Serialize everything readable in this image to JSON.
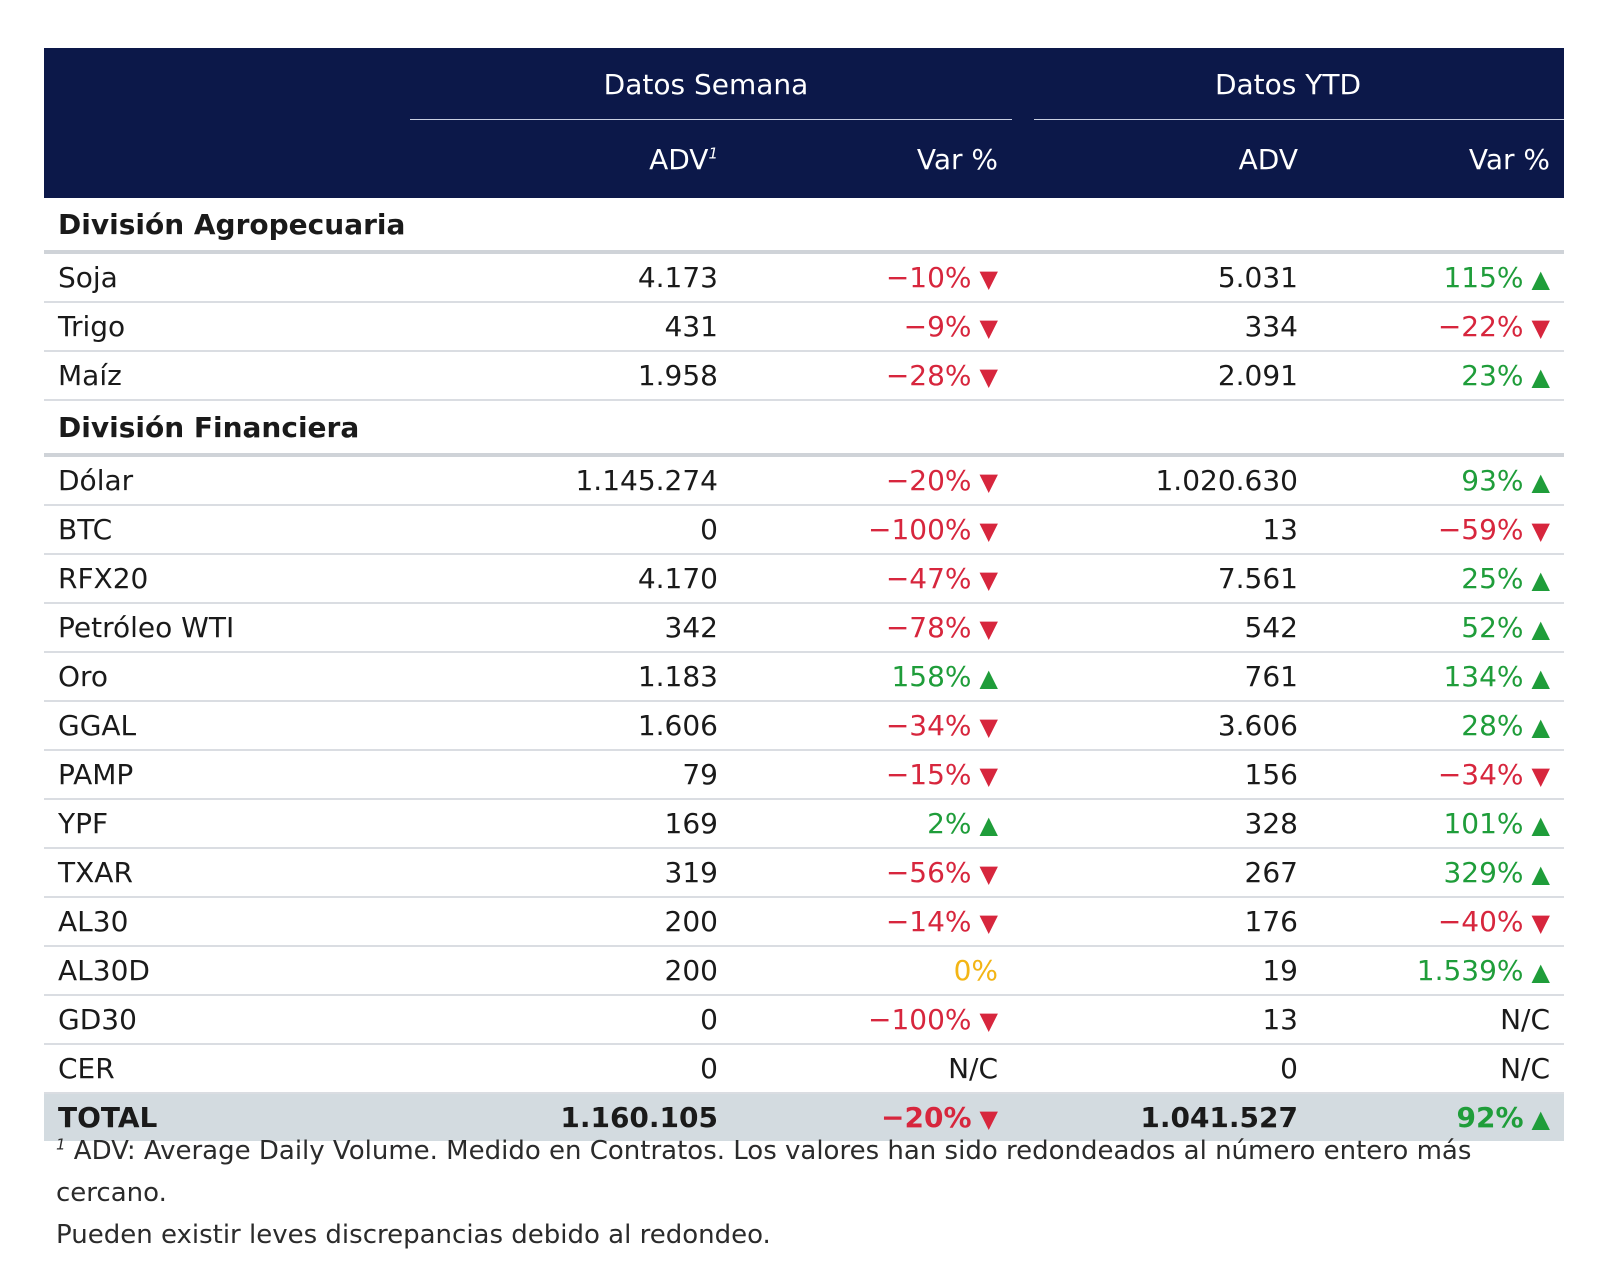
{
  "header": {
    "group_week": "Datos Semana",
    "group_ytd": "Datos YTD",
    "adv_week": "ADV",
    "adv_week_sup": "1",
    "var_week": "Var %",
    "adv_ytd": "ADV",
    "var_ytd": "Var %"
  },
  "sections": [
    {
      "title": "División Agropecuaria",
      "rows": [
        {
          "name": "Soja",
          "adv_w": "4.173",
          "var_w": "−10%",
          "var_w_dir": "down",
          "adv_y": "5.031",
          "var_y": "115%",
          "var_y_dir": "up"
        },
        {
          "name": "Trigo",
          "adv_w": "431",
          "var_w": "−9%",
          "var_w_dir": "down",
          "adv_y": "334",
          "var_y": "−22%",
          "var_y_dir": "down"
        },
        {
          "name": "Maíz",
          "adv_w": "1.958",
          "var_w": "−28%",
          "var_w_dir": "down",
          "adv_y": "2.091",
          "var_y": "23%",
          "var_y_dir": "up"
        }
      ]
    },
    {
      "title": "División Financiera",
      "rows": [
        {
          "name": "Dólar",
          "adv_w": "1.145.274",
          "var_w": "−20%",
          "var_w_dir": "down",
          "adv_y": "1.020.630",
          "var_y": "93%",
          "var_y_dir": "up"
        },
        {
          "name": "BTC",
          "adv_w": "0",
          "var_w": "−100%",
          "var_w_dir": "down",
          "adv_y": "13",
          "var_y": "−59%",
          "var_y_dir": "down"
        },
        {
          "name": "RFX20",
          "adv_w": "4.170",
          "var_w": "−47%",
          "var_w_dir": "down",
          "adv_y": "7.561",
          "var_y": "25%",
          "var_y_dir": "up"
        },
        {
          "name": "Petróleo WTI",
          "adv_w": "342",
          "var_w": "−78%",
          "var_w_dir": "down",
          "adv_y": "542",
          "var_y": "52%",
          "var_y_dir": "up"
        },
        {
          "name": "Oro",
          "adv_w": "1.183",
          "var_w": "158%",
          "var_w_dir": "up",
          "adv_y": "761",
          "var_y": "134%",
          "var_y_dir": "up"
        },
        {
          "name": "GGAL",
          "adv_w": "1.606",
          "var_w": "−34%",
          "var_w_dir": "down",
          "adv_y": "3.606",
          "var_y": "28%",
          "var_y_dir": "up"
        },
        {
          "name": "PAMP",
          "adv_w": "79",
          "var_w": "−15%",
          "var_w_dir": "down",
          "adv_y": "156",
          "var_y": "−34%",
          "var_y_dir": "down"
        },
        {
          "name": "YPF",
          "adv_w": "169",
          "var_w": "2%",
          "var_w_dir": "up",
          "adv_y": "328",
          "var_y": "101%",
          "var_y_dir": "up"
        },
        {
          "name": "TXAR",
          "adv_w": "319",
          "var_w": "−56%",
          "var_w_dir": "down",
          "adv_y": "267",
          "var_y": "329%",
          "var_y_dir": "up"
        },
        {
          "name": "AL30",
          "adv_w": "200",
          "var_w": "−14%",
          "var_w_dir": "down",
          "adv_y": "176",
          "var_y": "−40%",
          "var_y_dir": "down"
        },
        {
          "name": "AL30D",
          "adv_w": "200",
          "var_w": "0%",
          "var_w_dir": "flat",
          "adv_y": "19",
          "var_y": "1.539%",
          "var_y_dir": "up"
        },
        {
          "name": "GD30",
          "adv_w": "0",
          "var_w": "−100%",
          "var_w_dir": "down",
          "adv_y": "13",
          "var_y": "N/C",
          "var_y_dir": "none"
        },
        {
          "name": "CER",
          "adv_w": "0",
          "var_w": "N/C",
          "var_w_dir": "none",
          "adv_y": "0",
          "var_y": "N/C",
          "var_y_dir": "none"
        }
      ]
    }
  ],
  "total": {
    "name": "TOTAL",
    "adv_w": "1.160.105",
    "var_w": "−20%",
    "var_w_dir": "down",
    "adv_y": "1.041.527",
    "var_y": "92%",
    "var_y_dir": "up"
  },
  "footnote": {
    "marker": "1",
    "line1": " ADV: Average Daily Volume. Medido en Contratos. Los valores han sido redondeados al número entero más cercano.",
    "line2": "Pueden existir leves discrepancias debido al redondeo."
  },
  "colors": {
    "header_bg": "#0c1849",
    "negative": "#d7263d",
    "positive": "#1f9d3a",
    "neutral": "#f3b515",
    "total_bg": "#d3dbe0"
  },
  "icons": {
    "up": "triangle-up-icon",
    "down": "triangle-down-icon"
  }
}
